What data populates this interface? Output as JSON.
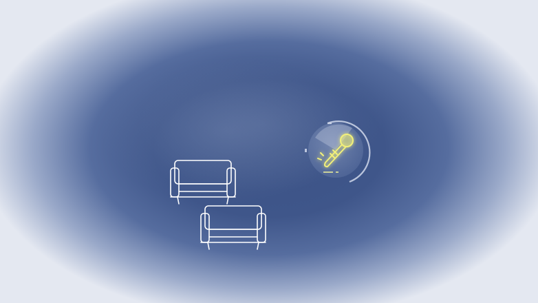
{
  "scene": {
    "background_color": "#3f568a",
    "edge_color": "#e4e8f1"
  },
  "objects": {
    "sofa_1": {
      "icon": "sofa-icon"
    },
    "sofa_2": {
      "icon": "sofa-icon"
    },
    "microphone": {
      "icon": "microphone-icon",
      "glow_color": "#f2f07a"
    }
  }
}
